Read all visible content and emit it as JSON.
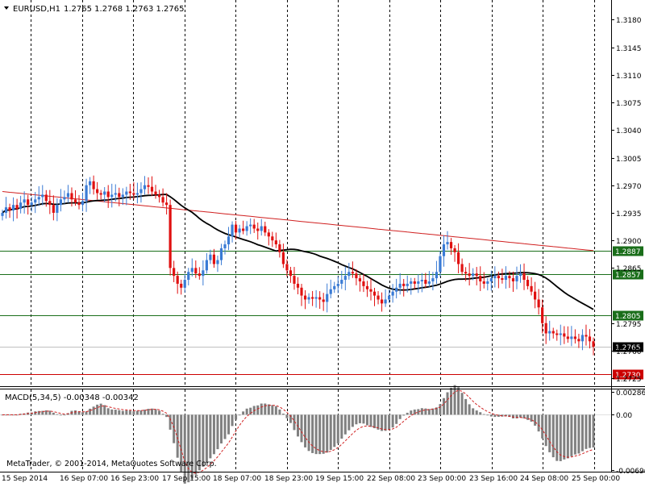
{
  "header": {
    "symbol_label": "EURUSD,H1",
    "ohlc": "1.2765 1.2768 1.2763 1.2765"
  },
  "macd_label": "MACD(5,34,5) -0.00348 -0.00342",
  "watermark": "MetaTrader, © 2001-2014, MetaQuotes Software Corp.",
  "colors": {
    "bull": "#3a7bd5",
    "bear": "#e01010",
    "ma_fast": "#000000",
    "ma_slow": "#d02020",
    "support": "#1a6e1a",
    "target": "#cc0000",
    "grid": "#000000",
    "histogram": "#808080"
  },
  "chart_data": [
    {
      "type": "candlestick",
      "panel": "price",
      "symbol": "EURUSD",
      "timeframe": "H1",
      "ylim": [
        1.2715,
        1.3205
      ],
      "y_ticks": [
        "1.3180",
        "1.3145",
        "1.3110",
        "1.3075",
        "1.3040",
        "1.3005",
        "1.2970",
        "1.2935",
        "1.2900",
        "1.2865",
        "1.2795",
        "1.2760",
        "1.2725"
      ],
      "x_ticks": [
        "15 Sep 2014",
        "16 Sep 07:00",
        "16 Sep 23:00",
        "17 Sep 15:00",
        "18 Sep 07:00",
        "18 Sep 23:00",
        "19 Sep 15:00",
        "22 Sep 08:00",
        "23 Sep 00:00",
        "23 Sep 16:00",
        "24 Sep 08:00",
        "25 Sep 00:00"
      ],
      "current_price": "1.2765",
      "levels": [
        {
          "label": "1.2887",
          "value": 1.2887,
          "kind": "support"
        },
        {
          "label": "1.2857",
          "value": 1.2857,
          "kind": "support"
        },
        {
          "label": "1.2805",
          "value": 1.2805,
          "kind": "support"
        },
        {
          "label": "1.2730",
          "value": 1.273,
          "kind": "target"
        }
      ],
      "close_series": [
        1.2935,
        1.2942,
        1.2938,
        1.2945,
        1.294,
        1.2948,
        1.2952,
        1.2945,
        1.2948,
        1.2952,
        1.2955,
        1.2958,
        1.295,
        1.2945,
        1.2935,
        1.2945,
        1.2952,
        1.2955,
        1.296,
        1.2952,
        1.2948,
        1.2945,
        1.295,
        1.297,
        1.2975,
        1.2965,
        1.296,
        1.2958,
        1.2962,
        1.2955,
        1.2958,
        1.296,
        1.2955,
        1.2958,
        1.2962,
        1.296,
        1.2958,
        1.296,
        1.2965,
        1.297,
        1.2968,
        1.2962,
        1.2958,
        1.2955,
        1.2948,
        1.2945,
        1.2865,
        1.2855,
        1.2845,
        1.284,
        1.285,
        1.286,
        1.2865,
        1.2858,
        1.2855,
        1.2862,
        1.2875,
        1.2882,
        1.287,
        1.2875,
        1.289,
        1.2895,
        1.2905,
        1.292,
        1.291,
        1.2915,
        1.2912,
        1.2918,
        1.292,
        1.2915,
        1.2912,
        1.2918,
        1.291,
        1.2905,
        1.29,
        1.2895,
        1.2885,
        1.287,
        1.2862,
        1.2855,
        1.2845,
        1.284,
        1.283,
        1.2825,
        1.2828,
        1.2826,
        1.2828,
        1.2825,
        1.2822,
        1.2832,
        1.2838,
        1.2842,
        1.2845,
        1.285,
        1.2855,
        1.286,
        1.2858,
        1.2852,
        1.2848,
        1.2842,
        1.2838,
        1.2835,
        1.283,
        1.2825,
        1.282,
        1.2825,
        1.283,
        1.2835,
        1.284,
        1.2845,
        1.2842,
        1.2845,
        1.2848,
        1.2845,
        1.2848,
        1.285,
        1.2845,
        1.2848,
        1.2852,
        1.286,
        1.288,
        1.2895,
        1.2898,
        1.289,
        1.2885,
        1.287,
        1.286,
        1.2858,
        1.2855,
        1.2858,
        1.2855,
        1.2848,
        1.2845,
        1.2848,
        1.2852,
        1.2855,
        1.2852,
        1.285,
        1.2855,
        1.2852,
        1.2848,
        1.2855,
        1.2858,
        1.285,
        1.2842,
        1.2835,
        1.2825,
        1.2815,
        1.2795,
        1.2782,
        1.2785,
        1.2782,
        1.278,
        1.2782,
        1.2778,
        1.2775,
        1.2778,
        1.2775,
        1.2772,
        1.278,
        1.2778,
        1.2772,
        1.2765
      ]
    },
    {
      "type": "bar",
      "panel": "macd",
      "name": "MACD(5,34,5)",
      "ylim": [
        -0.0072,
        0.0032
      ],
      "y_ticks": [
        "0.00286",
        "0.00",
        "-0.00696"
      ],
      "values_main": -0.00348,
      "values_signal": -0.00342
    }
  ]
}
